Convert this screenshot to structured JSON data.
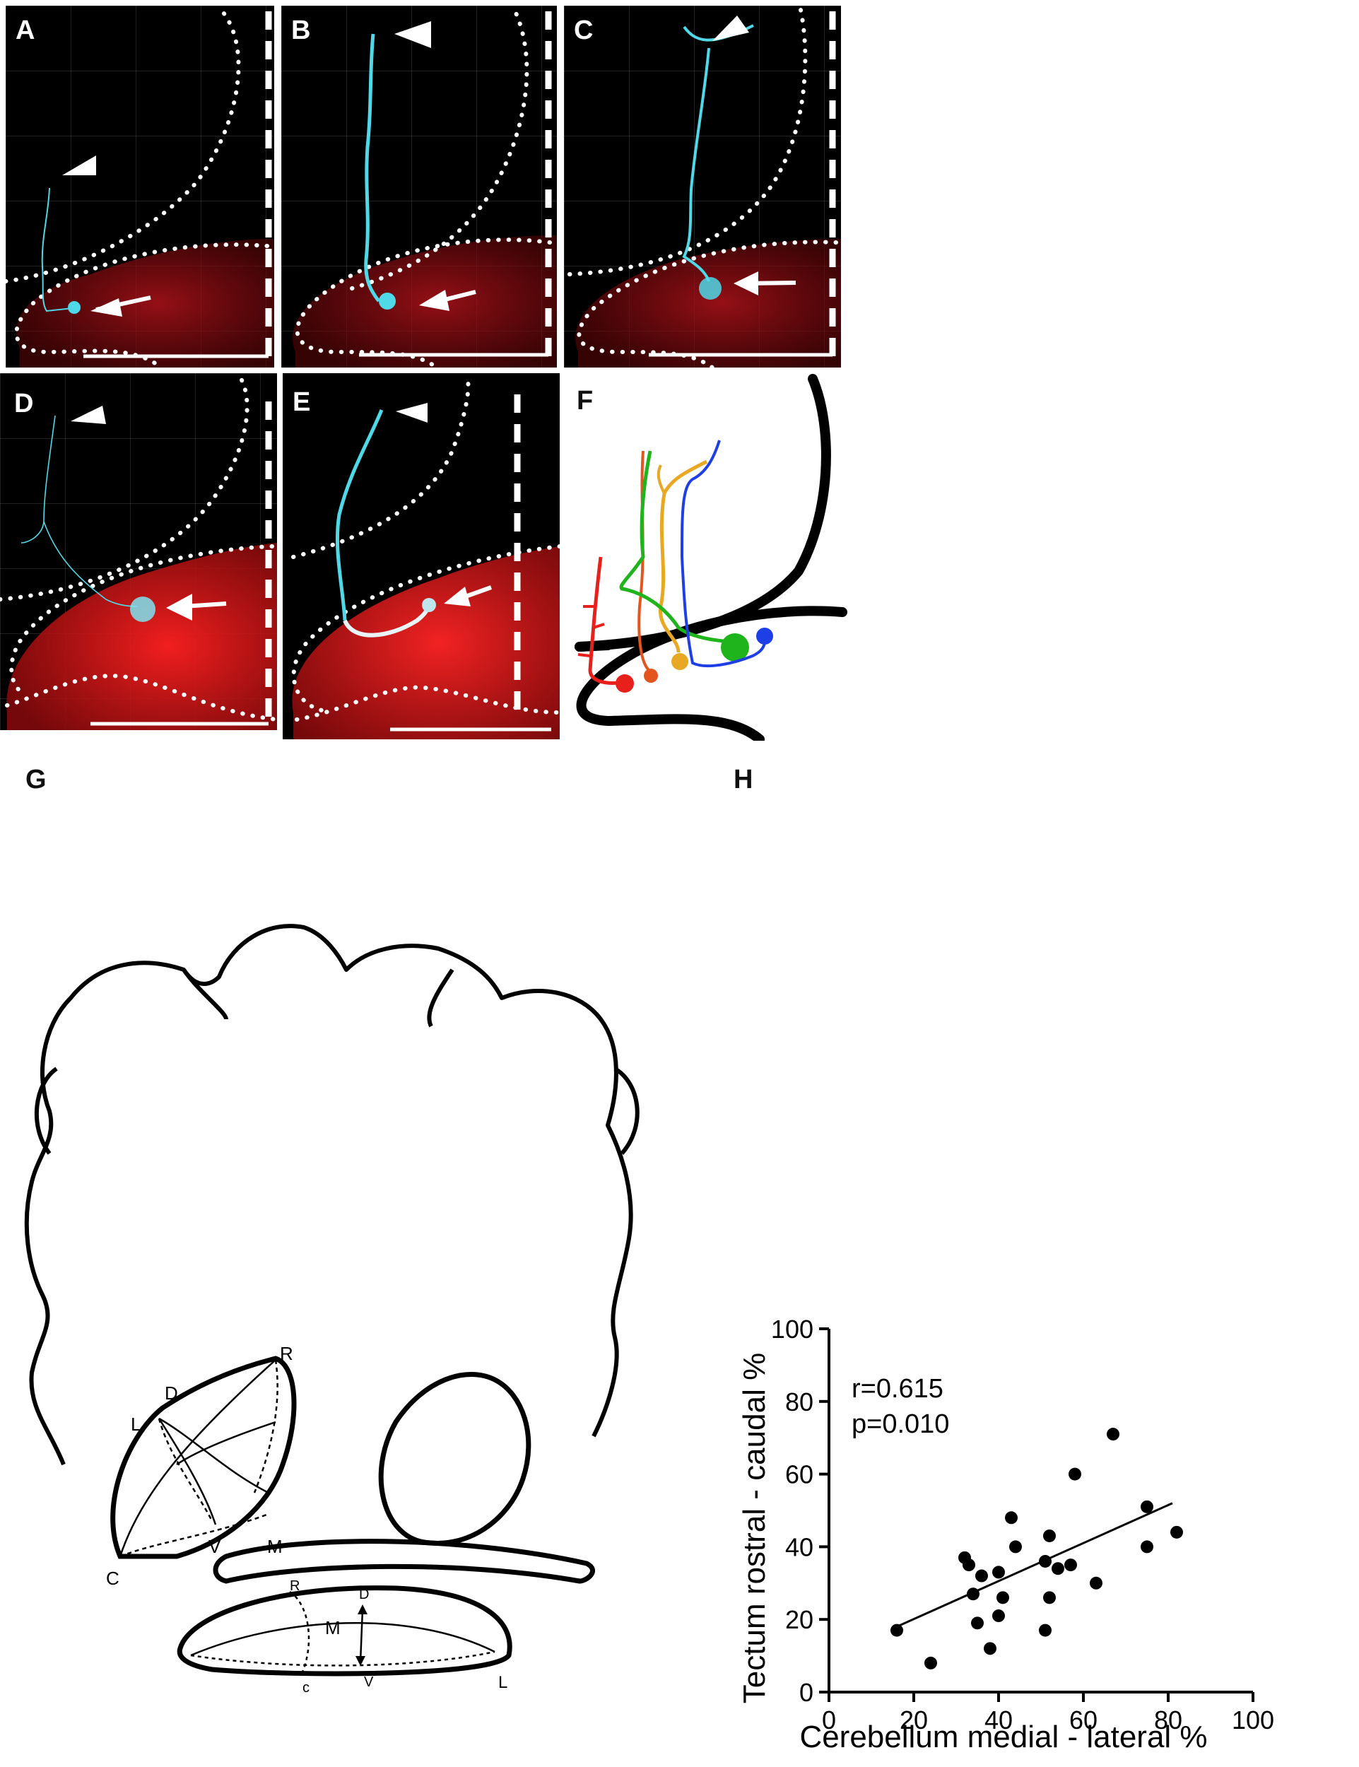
{
  "panels": {
    "A": {
      "label": "A"
    },
    "B": {
      "label": "B"
    },
    "C": {
      "label": "C"
    },
    "D": {
      "label": "D"
    },
    "E": {
      "label": "E"
    },
    "F": {
      "label": "F"
    },
    "G": {
      "label": "G"
    },
    "H": {
      "label": "H"
    }
  },
  "schematic_g": {
    "tectum_labels": {
      "D": "D",
      "R": "R",
      "L": "L",
      "V": "V",
      "M": "M",
      "C": "C"
    },
    "cerebellum_labels": {
      "R": "R",
      "D": "D",
      "M": "M",
      "C": "c",
      "V": "V",
      "L": "L"
    }
  },
  "trace_colors": {
    "red": "#e8201c",
    "orange_red": "#e4551e",
    "yellow": "#e8a823",
    "green": "#1fb31c",
    "blue": "#1f3fe6",
    "cyan": "#4fd8e8"
  },
  "chart_data": {
    "type": "scatter",
    "xlabel": "Cerebellum medial - lateral %",
    "ylabel": "Tectum rostral - caudal %",
    "xlim": [
      0,
      100
    ],
    "ylim": [
      0,
      100
    ],
    "xticks": [
      0,
      20,
      40,
      60,
      80,
      100
    ],
    "yticks": [
      0,
      20,
      40,
      60,
      80,
      100
    ],
    "annotations": [
      "r=0.615",
      "p=0.010"
    ],
    "points": [
      {
        "x": 16,
        "y": 17
      },
      {
        "x": 24,
        "y": 8
      },
      {
        "x": 32,
        "y": 37
      },
      {
        "x": 33,
        "y": 35
      },
      {
        "x": 34,
        "y": 27
      },
      {
        "x": 35,
        "y": 19
      },
      {
        "x": 36,
        "y": 32
      },
      {
        "x": 38,
        "y": 12
      },
      {
        "x": 40,
        "y": 21
      },
      {
        "x": 40,
        "y": 33
      },
      {
        "x": 41,
        "y": 26
      },
      {
        "x": 43,
        "y": 48
      },
      {
        "x": 44,
        "y": 40
      },
      {
        "x": 51,
        "y": 17
      },
      {
        "x": 51,
        "y": 36
      },
      {
        "x": 52,
        "y": 26
      },
      {
        "x": 52,
        "y": 43
      },
      {
        "x": 54,
        "y": 34
      },
      {
        "x": 57,
        "y": 35
      },
      {
        "x": 58,
        "y": 60
      },
      {
        "x": 63,
        "y": 30
      },
      {
        "x": 67,
        "y": 71
      },
      {
        "x": 75,
        "y": 51
      },
      {
        "x": 75,
        "y": 40
      },
      {
        "x": 82,
        "y": 44
      }
    ],
    "regression_line": [
      {
        "x": 16,
        "y": 18
      },
      {
        "x": 81,
        "y": 52
      }
    ],
    "grid": false,
    "marker_color": "#000000"
  }
}
